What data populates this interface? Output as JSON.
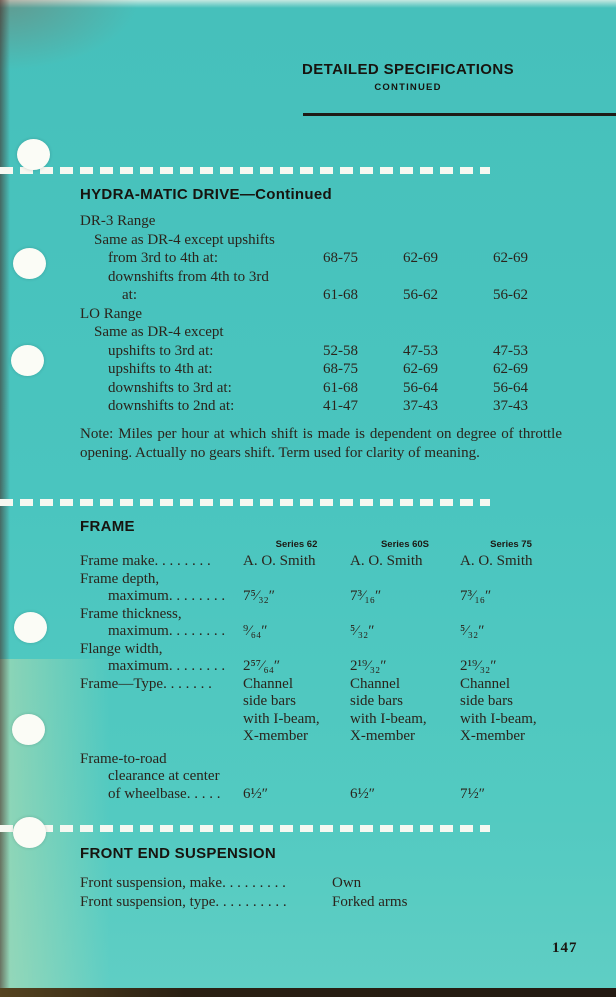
{
  "page": {
    "number": "147"
  },
  "header": {
    "title": "DETAILED SPECIFICATIONS",
    "subtitle": "CONTINUED"
  },
  "hydramatic": {
    "title": "HYDRA-MATIC DRIVE—Continued",
    "rows": [
      {
        "indent": 0,
        "label": "DR-3 Range",
        "values": [
          "",
          "",
          ""
        ]
      },
      {
        "indent": 1,
        "label": "Same as DR-4 except upshifts",
        "values": [
          "",
          "",
          ""
        ]
      },
      {
        "indent": 2,
        "label": "from 3rd to 4th at:",
        "values": [
          "68-75",
          "62-69",
          "62-69"
        ]
      },
      {
        "indent": 2,
        "label": "downshifts from 4th to 3rd",
        "values": [
          "",
          "",
          ""
        ]
      },
      {
        "indent": 3,
        "label": "at:",
        "values": [
          "61-68",
          "56-62",
          "56-62"
        ]
      },
      {
        "indent": 0,
        "label": "LO Range",
        "values": [
          "",
          "",
          ""
        ]
      },
      {
        "indent": 1,
        "label": "Same as DR-4 except",
        "values": [
          "",
          "",
          ""
        ]
      },
      {
        "indent": 2,
        "label": "upshifts to 3rd at:",
        "values": [
          "52-58",
          "47-53",
          "47-53"
        ]
      },
      {
        "indent": 2,
        "label": "upshifts to 4th at:",
        "values": [
          "68-75",
          "62-69",
          "62-69"
        ]
      },
      {
        "indent": 2,
        "label": "downshifts to 3rd at:",
        "values": [
          "61-68",
          "56-64",
          "56-64"
        ]
      },
      {
        "indent": 2,
        "label": "downshifts to 2nd at:",
        "values": [
          "41-47",
          "37-43",
          "37-43"
        ]
      }
    ],
    "note": "Note: Miles per hour at which shift is made is dependent on degree of throttle opening. Actually no gears shift. Term used for clarity of meaning."
  },
  "frame": {
    "title": "FRAME",
    "col_headers": [
      "Series 62",
      "Series 60S",
      "Series 75"
    ],
    "rows": [
      {
        "label_lines": [
          "Frame make. . . . . . . ."
        ],
        "values": [
          [
            "A. O. Smith"
          ],
          [
            "A. O. Smith"
          ],
          [
            "A. O. Smith"
          ]
        ]
      },
      {
        "label_lines": [
          "Frame depth,",
          "maximum. . . . . . . ."
        ],
        "values": [
          [
            "7⁵⁄₃₂″"
          ],
          [
            "7³⁄₁₆″"
          ],
          [
            "7³⁄₁₆″"
          ]
        ]
      },
      {
        "label_lines": [
          "Frame thickness,",
          "maximum. . . . . . . ."
        ],
        "values": [
          [
            "⁹⁄₆₄″"
          ],
          [
            "⁵⁄₃₂″"
          ],
          [
            "⁵⁄₃₂″"
          ]
        ]
      },
      {
        "label_lines": [
          "Flange width,",
          "maximum. . . . . . . ."
        ],
        "values": [
          [
            "2⁵⁷⁄₆₄″"
          ],
          [
            "2¹⁹⁄₃₂″"
          ],
          [
            "2¹⁹⁄₃₂″"
          ]
        ]
      },
      {
        "label_lines": [
          "Frame—Type. . . . . . ."
        ],
        "values": [
          [
            "Channel",
            "side bars",
            "with I-beam,",
            "X-member"
          ],
          [
            "Channel",
            "side bars",
            "with I-beam,",
            "X-member"
          ],
          [
            "Channel",
            "side bars",
            "with I-beam,",
            "X-member"
          ]
        ]
      },
      {
        "label_lines": [
          "Frame-to-road",
          "clearance at center",
          "of wheelbase. . . . ."
        ],
        "values": [
          [
            "6½″"
          ],
          [
            "6½″"
          ],
          [
            "7½″"
          ]
        ]
      }
    ]
  },
  "suspension": {
    "title": "FRONT END SUSPENSION",
    "rows": [
      {
        "label": "Front suspension, make. . . . . . . . .",
        "value": "Own"
      },
      {
        "label": "Front suspension, type. . . . . . . . . .",
        "value": "Forked arms"
      }
    ]
  }
}
